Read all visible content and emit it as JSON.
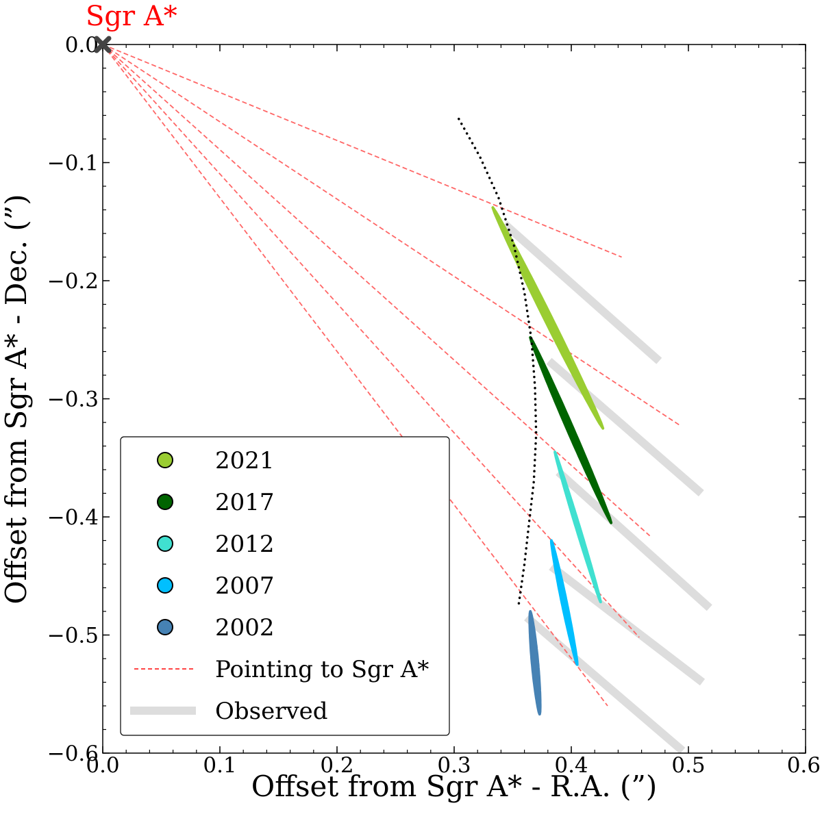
{
  "chart_data": {
    "type": "scatter",
    "title": "",
    "xlabel": "Offset from Sgr A* - R.A. (”)",
    "ylabel": "Offset from Sgr A* - Dec. (”)",
    "xlim": [
      0.0,
      0.6
    ],
    "ylim": [
      -0.6,
      0.0
    ],
    "x_ticks": [
      0.0,
      0.1,
      0.2,
      0.3,
      0.4,
      0.5,
      0.6
    ],
    "y_ticks": [
      0.0,
      -0.1,
      -0.2,
      -0.3,
      -0.4,
      -0.5,
      -0.6
    ],
    "x_tick_labels": [
      "0.0",
      "0.1",
      "0.2",
      "0.3",
      "0.4",
      "0.5",
      "0.6"
    ],
    "y_tick_labels": [
      "0.0",
      "−0.1",
      "−0.2",
      "−0.3",
      "−0.4",
      "−0.5",
      "−0.6"
    ],
    "grid": false,
    "legend_position": "lower-left",
    "annotation": {
      "text": "Sgr A*",
      "x": 0.0,
      "y": 0.0,
      "color": "#ff0000"
    },
    "origin_marker": {
      "x": 0.0,
      "y": 0.0,
      "symbol": "x",
      "color": "#444444"
    },
    "series": [
      {
        "name": "2021",
        "color": "#9acd32",
        "start": [
          0.333,
          -0.138
        ],
        "end": [
          0.427,
          -0.325
        ],
        "width": 0.006
      },
      {
        "name": "2017",
        "color": "#006400",
        "start": [
          0.365,
          -0.248
        ],
        "end": [
          0.434,
          -0.405
        ],
        "width": 0.005
      },
      {
        "name": "2012",
        "color": "#40e0d0",
        "start": [
          0.386,
          -0.345
        ],
        "end": [
          0.425,
          -0.472
        ],
        "width": 0.003
      },
      {
        "name": "2007",
        "color": "#00bfff",
        "start": [
          0.383,
          -0.42
        ],
        "end": [
          0.405,
          -0.525
        ],
        "width": 0.004
      },
      {
        "name": "2002",
        "color": "#4682b4",
        "start": [
          0.365,
          -0.48
        ],
        "end": [
          0.373,
          -0.567
        ],
        "width": 0.005
      }
    ],
    "pointing_lines": {
      "name": "Pointing to Sgr A*",
      "color": "#ff6666",
      "style": "dashed",
      "lines": [
        {
          "from": [
            0.0,
            0.0
          ],
          "to": [
            0.443,
            -0.18
          ]
        },
        {
          "from": [
            0.0,
            0.0
          ],
          "to": [
            0.492,
            -0.322
          ]
        },
        {
          "from": [
            0.0,
            0.0
          ],
          "to": [
            0.467,
            -0.416
          ]
        },
        {
          "from": [
            0.0,
            0.0
          ],
          "to": [
            0.458,
            -0.502
          ]
        },
        {
          "from": [
            0.0,
            0.0
          ],
          "to": [
            0.431,
            -0.56
          ]
        }
      ]
    },
    "observed_segments": {
      "name": "Observed",
      "color": "#dddddd",
      "segments": [
        {
          "from": [
            0.343,
            -0.152
          ],
          "to": [
            0.475,
            -0.268
          ]
        },
        {
          "from": [
            0.381,
            -0.268
          ],
          "to": [
            0.511,
            -0.38
          ]
        },
        {
          "from": [
            0.389,
            -0.362
          ],
          "to": [
            0.518,
            -0.477
          ]
        },
        {
          "from": [
            0.383,
            -0.442
          ],
          "to": [
            0.512,
            -0.54
          ]
        },
        {
          "from": [
            0.362,
            -0.485
          ],
          "to": [
            0.495,
            -0.598
          ]
        }
      ]
    },
    "orbit_curve": {
      "style": "dotted",
      "color": "#000000",
      "points": [
        [
          0.304,
          -0.063
        ],
        [
          0.322,
          -0.095
        ],
        [
          0.338,
          -0.13
        ],
        [
          0.351,
          -0.17
        ],
        [
          0.36,
          -0.21
        ],
        [
          0.366,
          -0.25
        ],
        [
          0.369,
          -0.29
        ],
        [
          0.37,
          -0.33
        ],
        [
          0.368,
          -0.37
        ],
        [
          0.364,
          -0.405
        ],
        [
          0.36,
          -0.44
        ],
        [
          0.355,
          -0.475
        ]
      ]
    },
    "legend": [
      {
        "label": "2021",
        "marker": "circle",
        "color": "#9acd32"
      },
      {
        "label": "2017",
        "marker": "circle",
        "color": "#006400"
      },
      {
        "label": "2012",
        "marker": "circle",
        "color": "#40e0d0"
      },
      {
        "label": "2007",
        "marker": "circle",
        "color": "#00bfff"
      },
      {
        "label": "2002",
        "marker": "circle",
        "color": "#4682b4"
      },
      {
        "label": "Pointing to Sgr A*",
        "marker": "dashed-line",
        "color": "#ff4444"
      },
      {
        "label": "Observed",
        "marker": "thick-line",
        "color": "#dddddd"
      }
    ]
  }
}
